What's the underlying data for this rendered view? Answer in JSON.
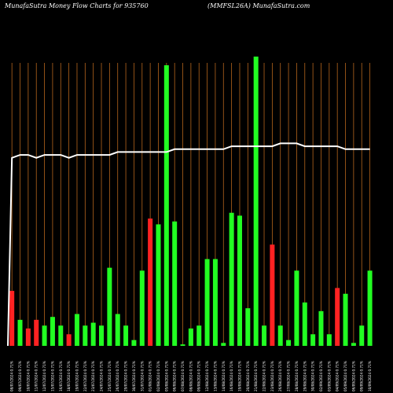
{
  "header": {
    "title": "MunafaSutra  Money Flow  Charts for 935760",
    "site": "(MMFSL26A) MunafaSutra.com"
  },
  "colors": {
    "background": "#000000",
    "up_bar": "#22ff22",
    "down_bar": "#ff2222",
    "grid_line": "#b5651d",
    "flow_line": "#ffffff",
    "text": "#ffffff"
  },
  "chart_data": {
    "type": "bar",
    "title": "MunafaSutra  Money Flow  Charts for 935760",
    "subtitle": "(MMFSL26A) MunafaSutra.com",
    "grid": true,
    "ylim": [
      0,
      100
    ],
    "categories": [
      "08/07/2024 0.71%",
      "09/07/2024 0.71%",
      "10/07/2024 0.71%",
      "11/07/2024 0.71%",
      "12/07/2024 0.71%",
      "15/07/2024 0.71%",
      "16/07/2024 0.71%",
      "18/07/2024 0.71%",
      "19/07/2024 0.71%",
      "22/07/2024 0.71%",
      "23/07/2024 0.71%",
      "24/07/2024 0.71%",
      "25/07/2024 0.71%",
      "26/07/2024 0.71%",
      "29/07/2024 0.71%",
      "30/07/2024 0.71%",
      "31/07/2024 0.71%",
      "01/08/2024 0.71%",
      "02/08/2024 0.71%",
      "05/08/2024 0.71%",
      "06/08/2024 0.71%",
      "07/08/2024 0.71%",
      "08/08/2024 0.71%",
      "09/08/2024 0.71%",
      "12/08/2024 0.71%",
      "13/08/2024 0.71%",
      "14/08/2024 0.71%",
      "16/08/2024 0.71%",
      "19/08/2024 0.71%",
      "20/08/2024 0.71%",
      "21/08/2024 0.71%",
      "22/08/2024 0.71%",
      "23/08/2024 0.71%",
      "26/08/2024 0.71%",
      "27/08/2024 0.71%",
      "28/08/2024 0.71%",
      "29/08/2024 0.71%",
      "30/08/2024 0.71%",
      "02/09/2024 0.71%",
      "03/09/2024 0.71%",
      "04/09/2024 0.71%",
      "05/09/2024 0.71%",
      "06/09/2024 0.71%",
      "09/09/2024 0.71%",
      "10/09/2024 0.71%"
    ],
    "series": [
      {
        "values": [
          19,
          9,
          6,
          9,
          7,
          10,
          7,
          4,
          11,
          7,
          8,
          7,
          27,
          11,
          7,
          2,
          26,
          44,
          42,
          97,
          43,
          0.5,
          6,
          7,
          30,
          30,
          1,
          46,
          45,
          13,
          100,
          7,
          35,
          7,
          2,
          26,
          15,
          4,
          12,
          4,
          20,
          18,
          1,
          7,
          26
        ],
        "directions": [
          "down",
          "up",
          "down",
          "down",
          "up",
          "up",
          "up",
          "down",
          "up",
          "up",
          "up",
          "up",
          "up",
          "up",
          "up",
          "up",
          "up",
          "down",
          "up",
          "up",
          "up",
          "up",
          "up",
          "up",
          "up",
          "up",
          "up",
          "up",
          "up",
          "up",
          "up",
          "up",
          "down",
          "up",
          "up",
          "up",
          "up",
          "up",
          "up",
          "up",
          "down",
          "up",
          "up",
          "up",
          "up"
        ]
      },
      {
        "type": "line",
        "values": [
          65,
          66,
          66,
          65,
          66,
          66,
          66,
          65,
          66,
          66,
          66,
          66,
          66,
          67,
          67,
          67,
          67,
          67,
          67,
          67,
          68,
          68,
          68,
          68,
          68,
          68,
          68,
          69,
          69,
          69,
          69,
          69,
          69,
          70,
          70,
          70,
          69,
          69,
          69,
          69,
          69,
          68,
          68,
          68,
          68
        ]
      }
    ]
  }
}
